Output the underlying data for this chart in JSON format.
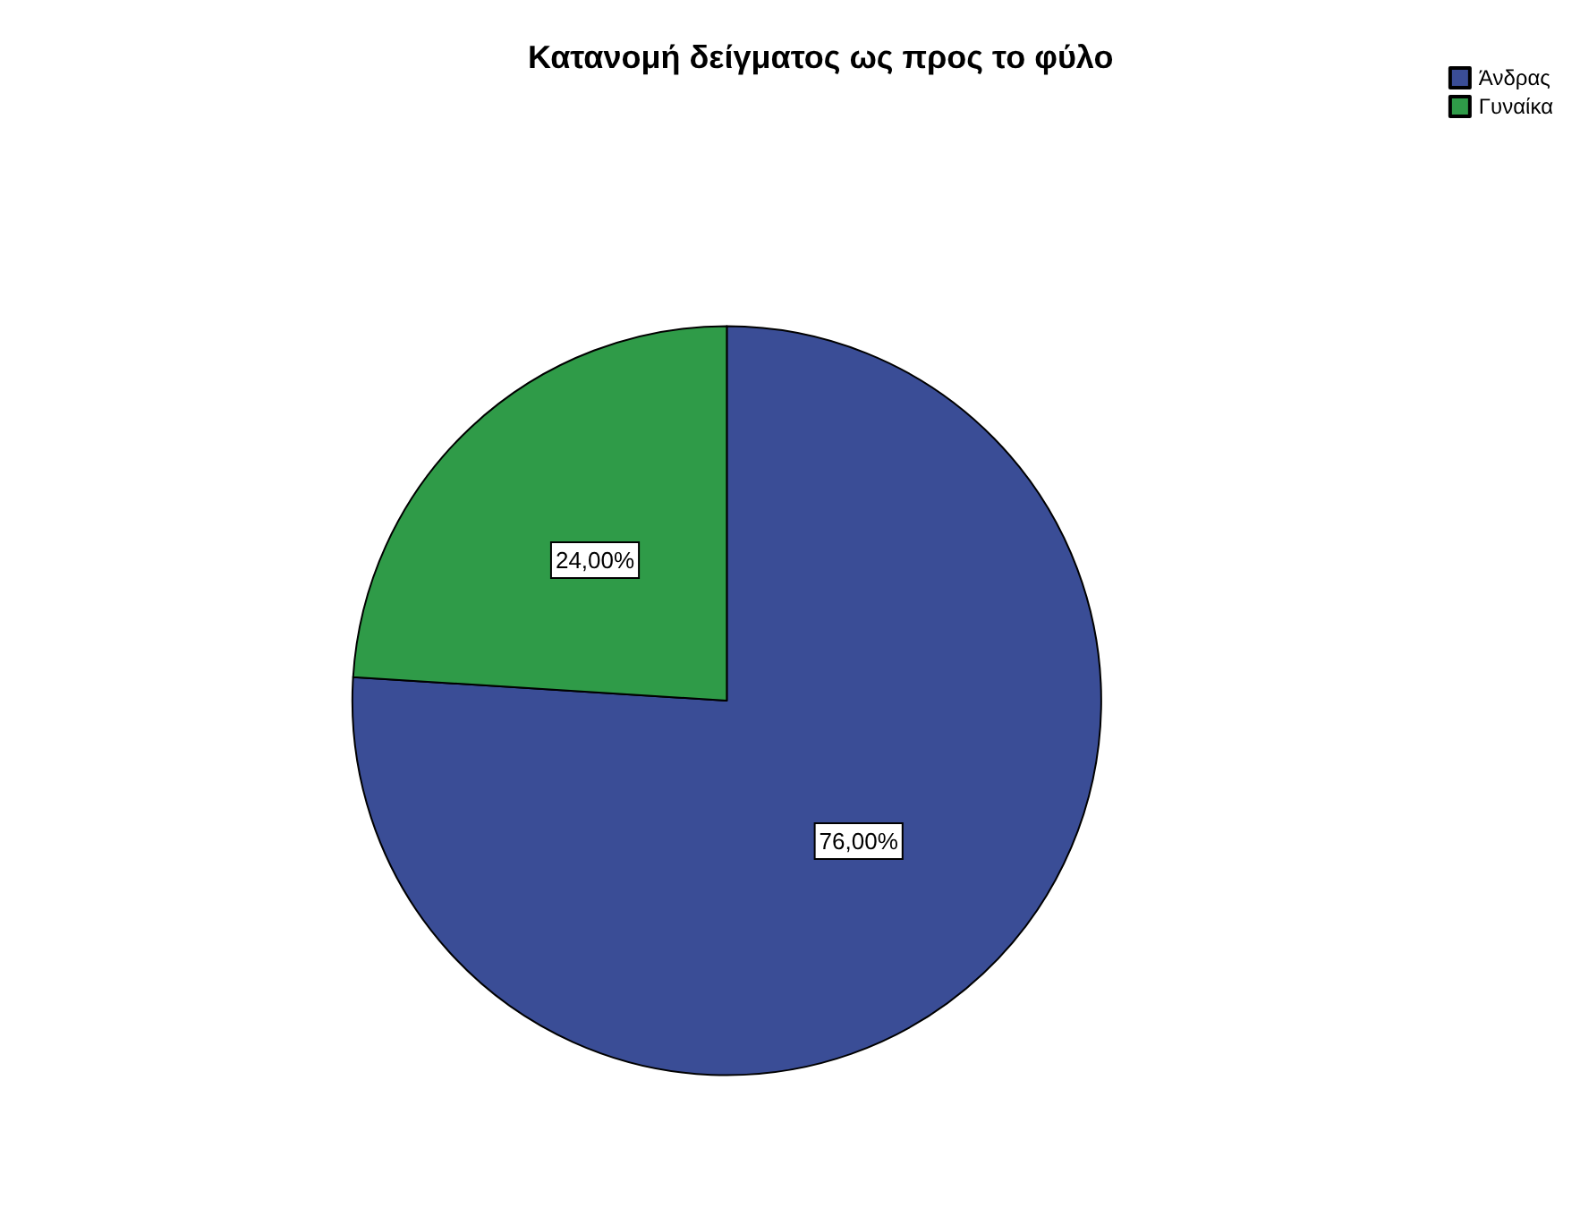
{
  "chart_data": {
    "type": "pie",
    "title": "Κατανομή δείγματος ως προς το φύλο",
    "categories": [
      "Άνδρας",
      "Γυναίκα"
    ],
    "values": [
      76,
      24
    ],
    "value_labels": [
      "76,00%",
      "24,00%"
    ],
    "colors": [
      "#3a4d96",
      "#2f9b48"
    ],
    "legend": "top right"
  }
}
